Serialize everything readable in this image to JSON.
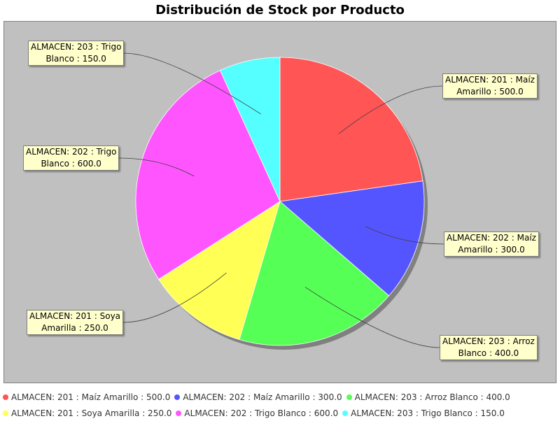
{
  "chart_data": {
    "type": "pie",
    "title": "Distribución de Stock por Producto",
    "slices": [
      {
        "label_line1": "ALMACEN: 201 : Maíz",
        "label_line2": "Amarillo : 500.0",
        "legend": "ALMACEN: 201 : Maíz Amarillo : 500.0",
        "value": 500.0,
        "color": "#ff5555"
      },
      {
        "label_line1": "ALMACEN: 202 : Maíz",
        "label_line2": "Amarillo : 300.0",
        "legend": "ALMACEN: 202 : Maíz Amarillo : 300.0",
        "value": 300.0,
        "color": "#5555ff"
      },
      {
        "label_line1": "ALMACEN: 203 : Arroz",
        "label_line2": "Blanco : 400.0",
        "legend": "ALMACEN: 203 : Arroz Blanco : 400.0",
        "value": 400.0,
        "color": "#55ff55"
      },
      {
        "label_line1": "ALMACEN: 201 : Soya",
        "label_line2": "Amarilla : 250.0",
        "legend": "ALMACEN: 201 : Soya Amarilla : 250.0",
        "value": 250.0,
        "color": "#ffff55"
      },
      {
        "label_line1": "ALMACEN: 202 : Trigo",
        "label_line2": "Blanco : 600.0",
        "legend": "ALMACEN: 202 : Trigo Blanco : 600.0",
        "value": 600.0,
        "color": "#ff55ff"
      },
      {
        "label_line1": "ALMACEN: 203 : Trigo",
        "label_line2": "Blanco : 150.0",
        "legend": "ALMACEN: 203 : Trigo Blanco : 150.0",
        "value": 150.0,
        "color": "#55ffff"
      }
    ],
    "start_angle": "12 o'clock",
    "direction": "clockwise",
    "legend_position": "bottom",
    "plot_background": "#c0c0c0"
  }
}
